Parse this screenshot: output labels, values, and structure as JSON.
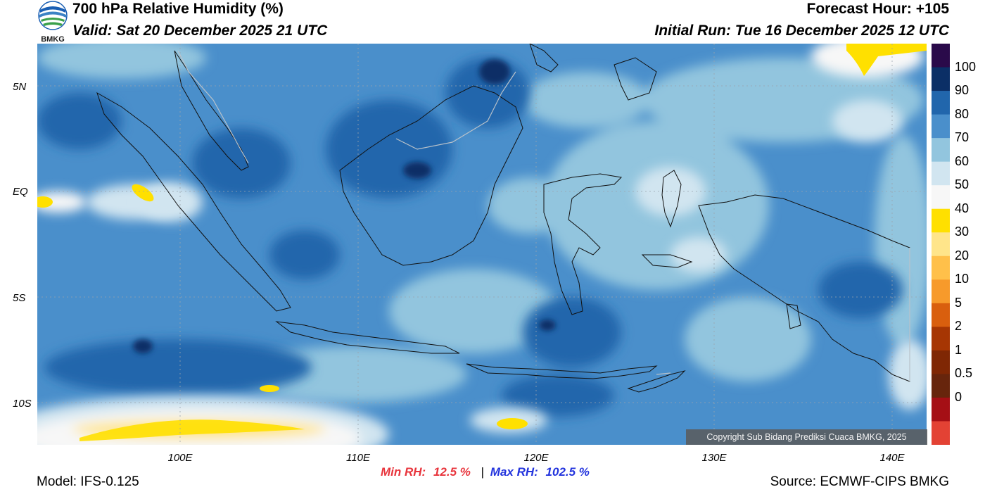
{
  "header": {
    "title": "700 hPa Relative Humidity (%)",
    "valid": "Valid: Sat 20 December 2025 21 UTC",
    "forecast_hour": "Forecast Hour: +105",
    "initial_run": "Initial Run: Tue 16 December 2025 12 UTC"
  },
  "logo": {
    "text": "BMKG"
  },
  "axes": {
    "lat_labels": [
      "5N",
      "EQ",
      "5S",
      "10S"
    ],
    "lon_labels": [
      "100E",
      "110E",
      "120E",
      "130E",
      "140E"
    ]
  },
  "colorbar": {
    "labels": [
      "100",
      "90",
      "80",
      "70",
      "60",
      "50",
      "40",
      "30",
      "20",
      "10",
      "5",
      "2",
      "1",
      "0.5",
      "0"
    ],
    "colors": [
      "#2a0a4a",
      "#0b2f66",
      "#2166ac",
      "#4a8fcb",
      "#92c5de",
      "#d1e5f0",
      "#f7f7f7",
      "#ffe000",
      "#ffe58a",
      "#ffc04a",
      "#f79a2b",
      "#d95f0e",
      "#a63603",
      "#7f2704",
      "#67250c",
      "#a50f15",
      "#e34234"
    ]
  },
  "stats": {
    "min_label": "Min RH:",
    "min_value": "12.5 %",
    "separator": "|",
    "max_label": "Max RH:",
    "max_value": "102.5 %"
  },
  "footer": {
    "model": "Model: IFS-0.125",
    "source": "Source: ECMWF-CIPS BMKG",
    "copyright": "Copyright Sub Bidang Prediksi Cuaca BMKG, 2025"
  }
}
